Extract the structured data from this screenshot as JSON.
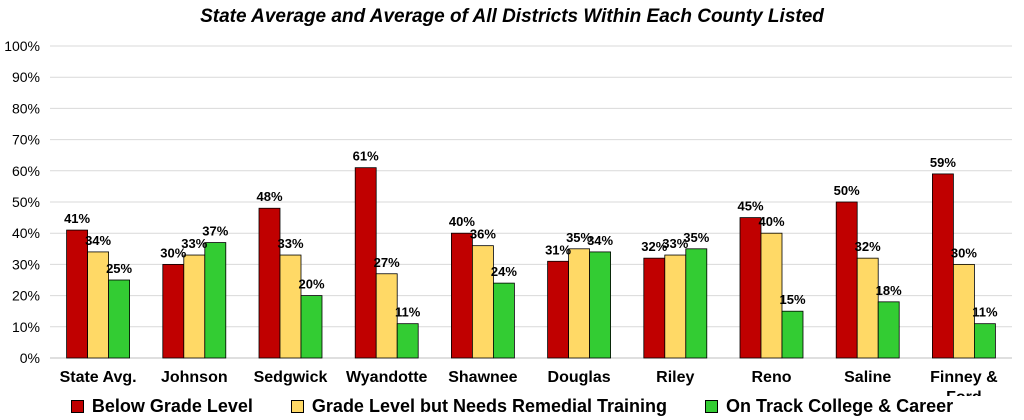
{
  "chart_data": {
    "type": "bar",
    "title": "State Average and Average of All Districts Within Each County Listed",
    "categories": [
      "State Avg.",
      "Johnson",
      "Sedgwick",
      "Wyandotte",
      "Shawnee",
      "Douglas",
      "Riley",
      "Reno",
      "Saline",
      "Finney & Ford"
    ],
    "series": [
      {
        "name": "Below Grade Level",
        "color": "#C00000",
        "values": [
          41,
          30,
          48,
          61,
          40,
          31,
          32,
          45,
          50,
          59
        ]
      },
      {
        "name": "Grade Level but Needs Remedial Training",
        "color": "#FFD966",
        "values": [
          34,
          33,
          33,
          27,
          36,
          35,
          33,
          40,
          32,
          30
        ]
      },
      {
        "name": "On Track College & Career",
        "color": "#33CC33",
        "values": [
          25,
          37,
          20,
          11,
          24,
          34,
          35,
          15,
          18,
          11
        ]
      }
    ],
    "ylim": [
      0,
      100
    ],
    "yticks": [
      "0%",
      "10%",
      "20%",
      "30%",
      "40%",
      "50%",
      "60%",
      "70%",
      "80%",
      "90%",
      "100%"
    ],
    "value_suffix": "%",
    "grid": true,
    "legend_position": "bottom"
  }
}
